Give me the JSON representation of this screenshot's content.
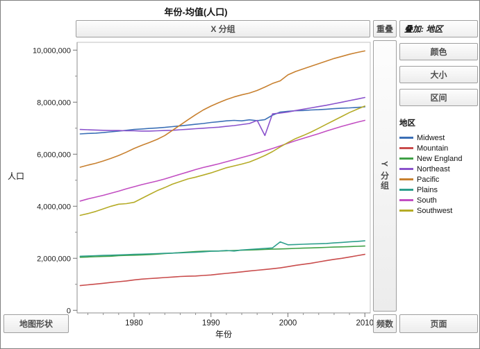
{
  "window": {
    "title": "年份-均值(人口)"
  },
  "zones": {
    "x_group": "X 分组",
    "y_group": "Y 分组",
    "overlap": "重叠",
    "overlay_label": "叠加: 地区",
    "color": "颜色",
    "size": "大小",
    "interval": "区间",
    "map_shape": "地图形状",
    "freq": "频数",
    "page": "页面"
  },
  "legend": {
    "title": "地区"
  },
  "chart_data": {
    "type": "line",
    "title": "年份-均值(人口)",
    "xlabel": "年份",
    "ylabel": "人口",
    "grid": false,
    "legend_position": "right",
    "xlim": [
      1972.6,
      2010.7
    ],
    "ylim": [
      -100000,
      10300000
    ],
    "xticks": {
      "major": [
        1980,
        1990,
        2000,
        2010
      ],
      "minor_step": 2
    },
    "yticks": [
      {
        "value": 0,
        "label": "0"
      },
      {
        "value": 2000000,
        "label": "2,000,000"
      },
      {
        "value": 4000000,
        "label": "4,000,000"
      },
      {
        "value": 6000000,
        "label": "6,000,000"
      },
      {
        "value": 8000000,
        "label": "8,000,000"
      },
      {
        "value": 10000000,
        "label": "10,000,000"
      }
    ],
    "x": [
      1973,
      1974,
      1975,
      1976,
      1977,
      1978,
      1979,
      1980,
      1981,
      1982,
      1983,
      1984,
      1985,
      1986,
      1987,
      1988,
      1989,
      1990,
      1991,
      1992,
      1993,
      1994,
      1995,
      1996,
      1997,
      1998,
      1999,
      2000,
      2001,
      2002,
      2003,
      2004,
      2005,
      2006,
      2007,
      2008,
      2009,
      2010
    ],
    "series": [
      {
        "name": "Midwest",
        "color": "#3b6fb6",
        "values": [
          6780000,
          6800000,
          6810000,
          6830000,
          6860000,
          6890000,
          6920000,
          6950000,
          6970000,
          6990000,
          7010000,
          7030000,
          7060000,
          7090000,
          7120000,
          7150000,
          7180000,
          7220000,
          7250000,
          7280000,
          7300000,
          7280000,
          7320000,
          7290000,
          7330000,
          7500000,
          7620000,
          7650000,
          7670000,
          7680000,
          7700000,
          7710000,
          7730000,
          7750000,
          7770000,
          7780000,
          7800000,
          7820000
        ]
      },
      {
        "name": "Mountain",
        "color": "#c94c4c",
        "values": [
          950000,
          980000,
          1010000,
          1040000,
          1070000,
          1100000,
          1130000,
          1170000,
          1200000,
          1220000,
          1240000,
          1260000,
          1280000,
          1300000,
          1310000,
          1320000,
          1340000,
          1360000,
          1390000,
          1420000,
          1450000,
          1480000,
          1510000,
          1540000,
          1570000,
          1600000,
          1630000,
          1680000,
          1730000,
          1770000,
          1810000,
          1860000,
          1910000,
          1960000,
          2000000,
          2050000,
          2100000,
          2150000
        ]
      },
      {
        "name": "New England",
        "color": "#3fa046",
        "values": [
          2040000,
          2050000,
          2060000,
          2070000,
          2080000,
          2100000,
          2110000,
          2120000,
          2130000,
          2140000,
          2160000,
          2180000,
          2200000,
          2220000,
          2240000,
          2260000,
          2270000,
          2280000,
          2280000,
          2290000,
          2300000,
          2310000,
          2320000,
          2330000,
          2340000,
          2350000,
          2360000,
          2370000,
          2380000,
          2390000,
          2400000,
          2410000,
          2420000,
          2430000,
          2440000,
          2450000,
          2460000,
          2470000
        ]
      },
      {
        "name": "Northeast",
        "color": "#8a52cc",
        "values": [
          6950000,
          6940000,
          6930000,
          6920000,
          6910000,
          6910000,
          6900000,
          6900000,
          6890000,
          6890000,
          6900000,
          6910000,
          6920000,
          6940000,
          6960000,
          6980000,
          7000000,
          7020000,
          7040000,
          7070000,
          7100000,
          7140000,
          7180000,
          7300000,
          6720000,
          7550000,
          7580000,
          7620000,
          7680000,
          7730000,
          7780000,
          7830000,
          7880000,
          7940000,
          8000000,
          8060000,
          8120000,
          8180000
        ]
      },
      {
        "name": "Pacific",
        "color": "#c8802f",
        "values": [
          5500000,
          5580000,
          5650000,
          5740000,
          5840000,
          5950000,
          6080000,
          6220000,
          6340000,
          6450000,
          6570000,
          6720000,
          6920000,
          7120000,
          7320000,
          7520000,
          7700000,
          7850000,
          7980000,
          8100000,
          8200000,
          8280000,
          8350000,
          8450000,
          8580000,
          8720000,
          8820000,
          9050000,
          9180000,
          9280000,
          9380000,
          9480000,
          9580000,
          9680000,
          9760000,
          9840000,
          9910000,
          9970000
        ]
      },
      {
        "name": "Plains",
        "color": "#2d9f8c",
        "values": [
          2080000,
          2090000,
          2100000,
          2110000,
          2120000,
          2130000,
          2140000,
          2150000,
          2160000,
          2170000,
          2180000,
          2190000,
          2200000,
          2210000,
          2220000,
          2230000,
          2250000,
          2270000,
          2280000,
          2300000,
          2280000,
          2320000,
          2340000,
          2360000,
          2380000,
          2400000,
          2630000,
          2520000,
          2530000,
          2540000,
          2550000,
          2560000,
          2570000,
          2590000,
          2610000,
          2630000,
          2650000,
          2670000
        ]
      },
      {
        "name": "South",
        "color": "#c24ec2",
        "values": [
          4200000,
          4280000,
          4350000,
          4420000,
          4500000,
          4580000,
          4670000,
          4750000,
          4830000,
          4900000,
          4970000,
          5050000,
          5140000,
          5230000,
          5320000,
          5410000,
          5490000,
          5560000,
          5630000,
          5710000,
          5790000,
          5870000,
          5950000,
          6040000,
          6130000,
          6220000,
          6320000,
          6420000,
          6520000,
          6610000,
          6700000,
          6790000,
          6890000,
          6980000,
          7070000,
          7150000,
          7230000,
          7300000
        ]
      },
      {
        "name": "Southwest",
        "color": "#b5ab26",
        "values": [
          3650000,
          3720000,
          3800000,
          3900000,
          4000000,
          4080000,
          4100000,
          4150000,
          4300000,
          4450000,
          4600000,
          4720000,
          4850000,
          4950000,
          5050000,
          5120000,
          5200000,
          5280000,
          5380000,
          5480000,
          5550000,
          5620000,
          5700000,
          5820000,
          5950000,
          6100000,
          6280000,
          6450000,
          6600000,
          6720000,
          6850000,
          7000000,
          7150000,
          7300000,
          7450000,
          7600000,
          7730000,
          7850000
        ]
      }
    ]
  }
}
